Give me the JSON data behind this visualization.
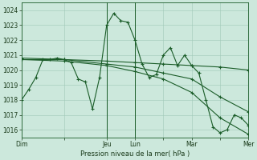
{
  "bg_color": "#cce8dc",
  "grid_color": "#a0c8b8",
  "line_color": "#1a5c28",
  "xlabel": "Pression niveau de la mer( hPa )",
  "ylim": [
    1015.5,
    1024.5
  ],
  "yticks": [
    1016,
    1017,
    1018,
    1019,
    1020,
    1021,
    1022,
    1023,
    1024
  ],
  "xtick_labels": [
    "Dim",
    "",
    "Jeu",
    "Lun",
    "",
    "Mar",
    "",
    "Mer"
  ],
  "xtick_positions": [
    0,
    36,
    72,
    96,
    120,
    144,
    168,
    192
  ],
  "series": [
    {
      "x": [
        0,
        6,
        12,
        18,
        24,
        30,
        36,
        42,
        48,
        54,
        60,
        66,
        72,
        78,
        84,
        90,
        96,
        102,
        108,
        114,
        120,
        126,
        132,
        138,
        144,
        150,
        156,
        162,
        168,
        174,
        180,
        186,
        192
      ],
      "y": [
        1018.0,
        1018.7,
        1019.5,
        1020.7,
        1020.7,
        1020.8,
        1020.7,
        1020.5,
        1019.4,
        1019.2,
        1017.4,
        1019.5,
        1023.0,
        1023.8,
        1023.3,
        1023.2,
        1022.0,
        1020.4,
        1019.5,
        1019.7,
        1021.0,
        1021.5,
        1020.3,
        1021.0,
        1020.3,
        1019.8,
        1018.0,
        1016.2,
        1015.8,
        1016.0,
        1017.0,
        1016.8,
        1016.3
      ]
    },
    {
      "x": [
        0,
        36,
        72,
        96,
        120,
        144,
        168,
        192
      ],
      "y": [
        1020.7,
        1020.7,
        1020.6,
        1020.5,
        1020.4,
        1020.3,
        1020.2,
        1020.0
      ]
    },
    {
      "x": [
        0,
        36,
        72,
        96,
        120,
        144,
        168,
        192
      ],
      "y": [
        1020.8,
        1020.7,
        1020.4,
        1020.2,
        1019.8,
        1019.4,
        1018.2,
        1017.2
      ]
    },
    {
      "x": [
        0,
        36,
        72,
        96,
        120,
        144,
        168,
        192
      ],
      "y": [
        1020.7,
        1020.6,
        1020.3,
        1019.9,
        1019.4,
        1018.5,
        1016.8,
        1015.7
      ]
    }
  ],
  "vlines": [
    72,
    96
  ],
  "figsize": [
    3.2,
    2.0
  ],
  "dpi": 100
}
